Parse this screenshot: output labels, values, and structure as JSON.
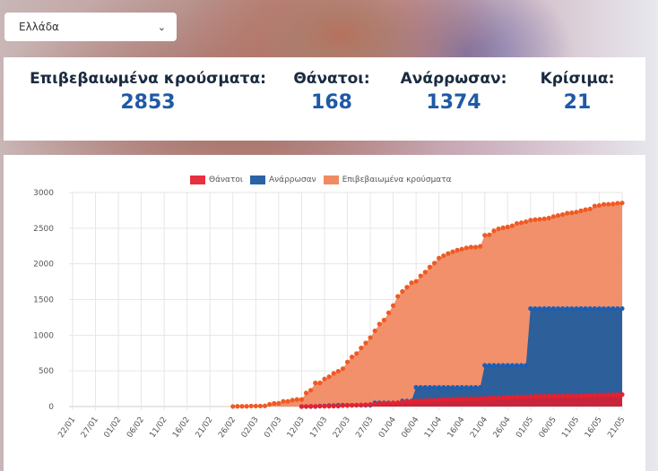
{
  "dropdown": {
    "value": "Ελλάδα",
    "icon": "chevron-down-icon"
  },
  "stats": [
    {
      "label": "Επιβεβαιωμένα κρούσματα:",
      "value": "2853"
    },
    {
      "label": "Θάνατοι:",
      "value": "168"
    },
    {
      "label": "Ανάρρωσαν:",
      "value": "1374"
    },
    {
      "label": "Κρίσιμα:",
      "value": "21"
    }
  ],
  "chart_data": {
    "type": "area",
    "x_start": "22/01",
    "x_end": "21/05",
    "x_ticks": [
      "22/01",
      "27/01",
      "01/02",
      "06/02",
      "11/02",
      "16/02",
      "21/02",
      "26/02",
      "02/03",
      "07/03",
      "12/03",
      "17/03",
      "22/03",
      "27/03",
      "01/04",
      "06/04",
      "11/04",
      "16/04",
      "21/04",
      "26/04",
      "01/05",
      "06/05",
      "11/05",
      "16/05",
      "21/05"
    ],
    "y_ticks": [
      0,
      500,
      1000,
      1500,
      2000,
      2500,
      3000
    ],
    "ylim": [
      0,
      3000
    ],
    "grid": true,
    "legend": "top",
    "series": [
      {
        "name": "Θάνατοι",
        "color": "#e8303f",
        "start": "12/03",
        "values": [
          1,
          1,
          3,
          4,
          4,
          5,
          5,
          6,
          6,
          13,
          15,
          17,
          20,
          22,
          26,
          28,
          32,
          38,
          43,
          49,
          50,
          53,
          63,
          68,
          73,
          79,
          81,
          83,
          86,
          91,
          93,
          98,
          99,
          101,
          102,
          105,
          108,
          110,
          110,
          113,
          116,
          116,
          121,
          121,
          125,
          130,
          130,
          134,
          136,
          136,
          140,
          143,
          144,
          146,
          146,
          147,
          148,
          150,
          150,
          151,
          151,
          152,
          155,
          156,
          160,
          162,
          163,
          165,
          165,
          166,
          168
        ]
      },
      {
        "name": "Ανάρρωσαν",
        "color": "#2d63a6",
        "start": "12/03",
        "values": [
          0,
          0,
          0,
          0,
          8,
          8,
          14,
          14,
          19,
          19,
          19,
          19,
          19,
          19,
          19,
          19,
          52,
          52,
          52,
          52,
          52,
          52,
          78,
          78,
          78,
          269,
          269,
          269,
          269,
          269,
          269,
          269,
          269,
          269,
          269,
          269,
          269,
          269,
          269,
          269,
          577,
          577,
          577,
          577,
          577,
          577,
          577,
          577,
          577,
          577,
          1374,
          1374,
          1374,
          1374,
          1374,
          1374,
          1374,
          1374,
          1374,
          1374,
          1374,
          1374,
          1374,
          1374,
          1374,
          1374,
          1374,
          1374,
          1374,
          1374,
          1374
        ]
      },
      {
        "name": "Επιβεβαιωμένα κρούσματα",
        "color": "#f08a63",
        "start": "26/02",
        "values": [
          1,
          3,
          3,
          3,
          7,
          7,
          7,
          9,
          31,
          45,
          46,
          73,
          73,
          89,
          99,
          99,
          190,
          228,
          331,
          331,
          387,
          418,
          464,
          495,
          530,
          624,
          695,
          743,
          821,
          892,
          966,
          1061,
          1156,
          1212,
          1314,
          1415,
          1544,
          1613,
          1673,
          1735,
          1755,
          1832,
          1884,
          1955,
          2011,
          2081,
          2114,
          2145,
          2170,
          2192,
          2207,
          2224,
          2235,
          2235,
          2245,
          2401,
          2408,
          2463,
          2490,
          2506,
          2517,
          2534,
          2566,
          2576,
          2591,
          2612,
          2620,
          2626,
          2632,
          2642,
          2663,
          2678,
          2691,
          2710,
          2716,
          2726,
          2744,
          2760,
          2770,
          2810,
          2819,
          2834,
          2836,
          2840,
          2850,
          2853
        ]
      }
    ]
  }
}
